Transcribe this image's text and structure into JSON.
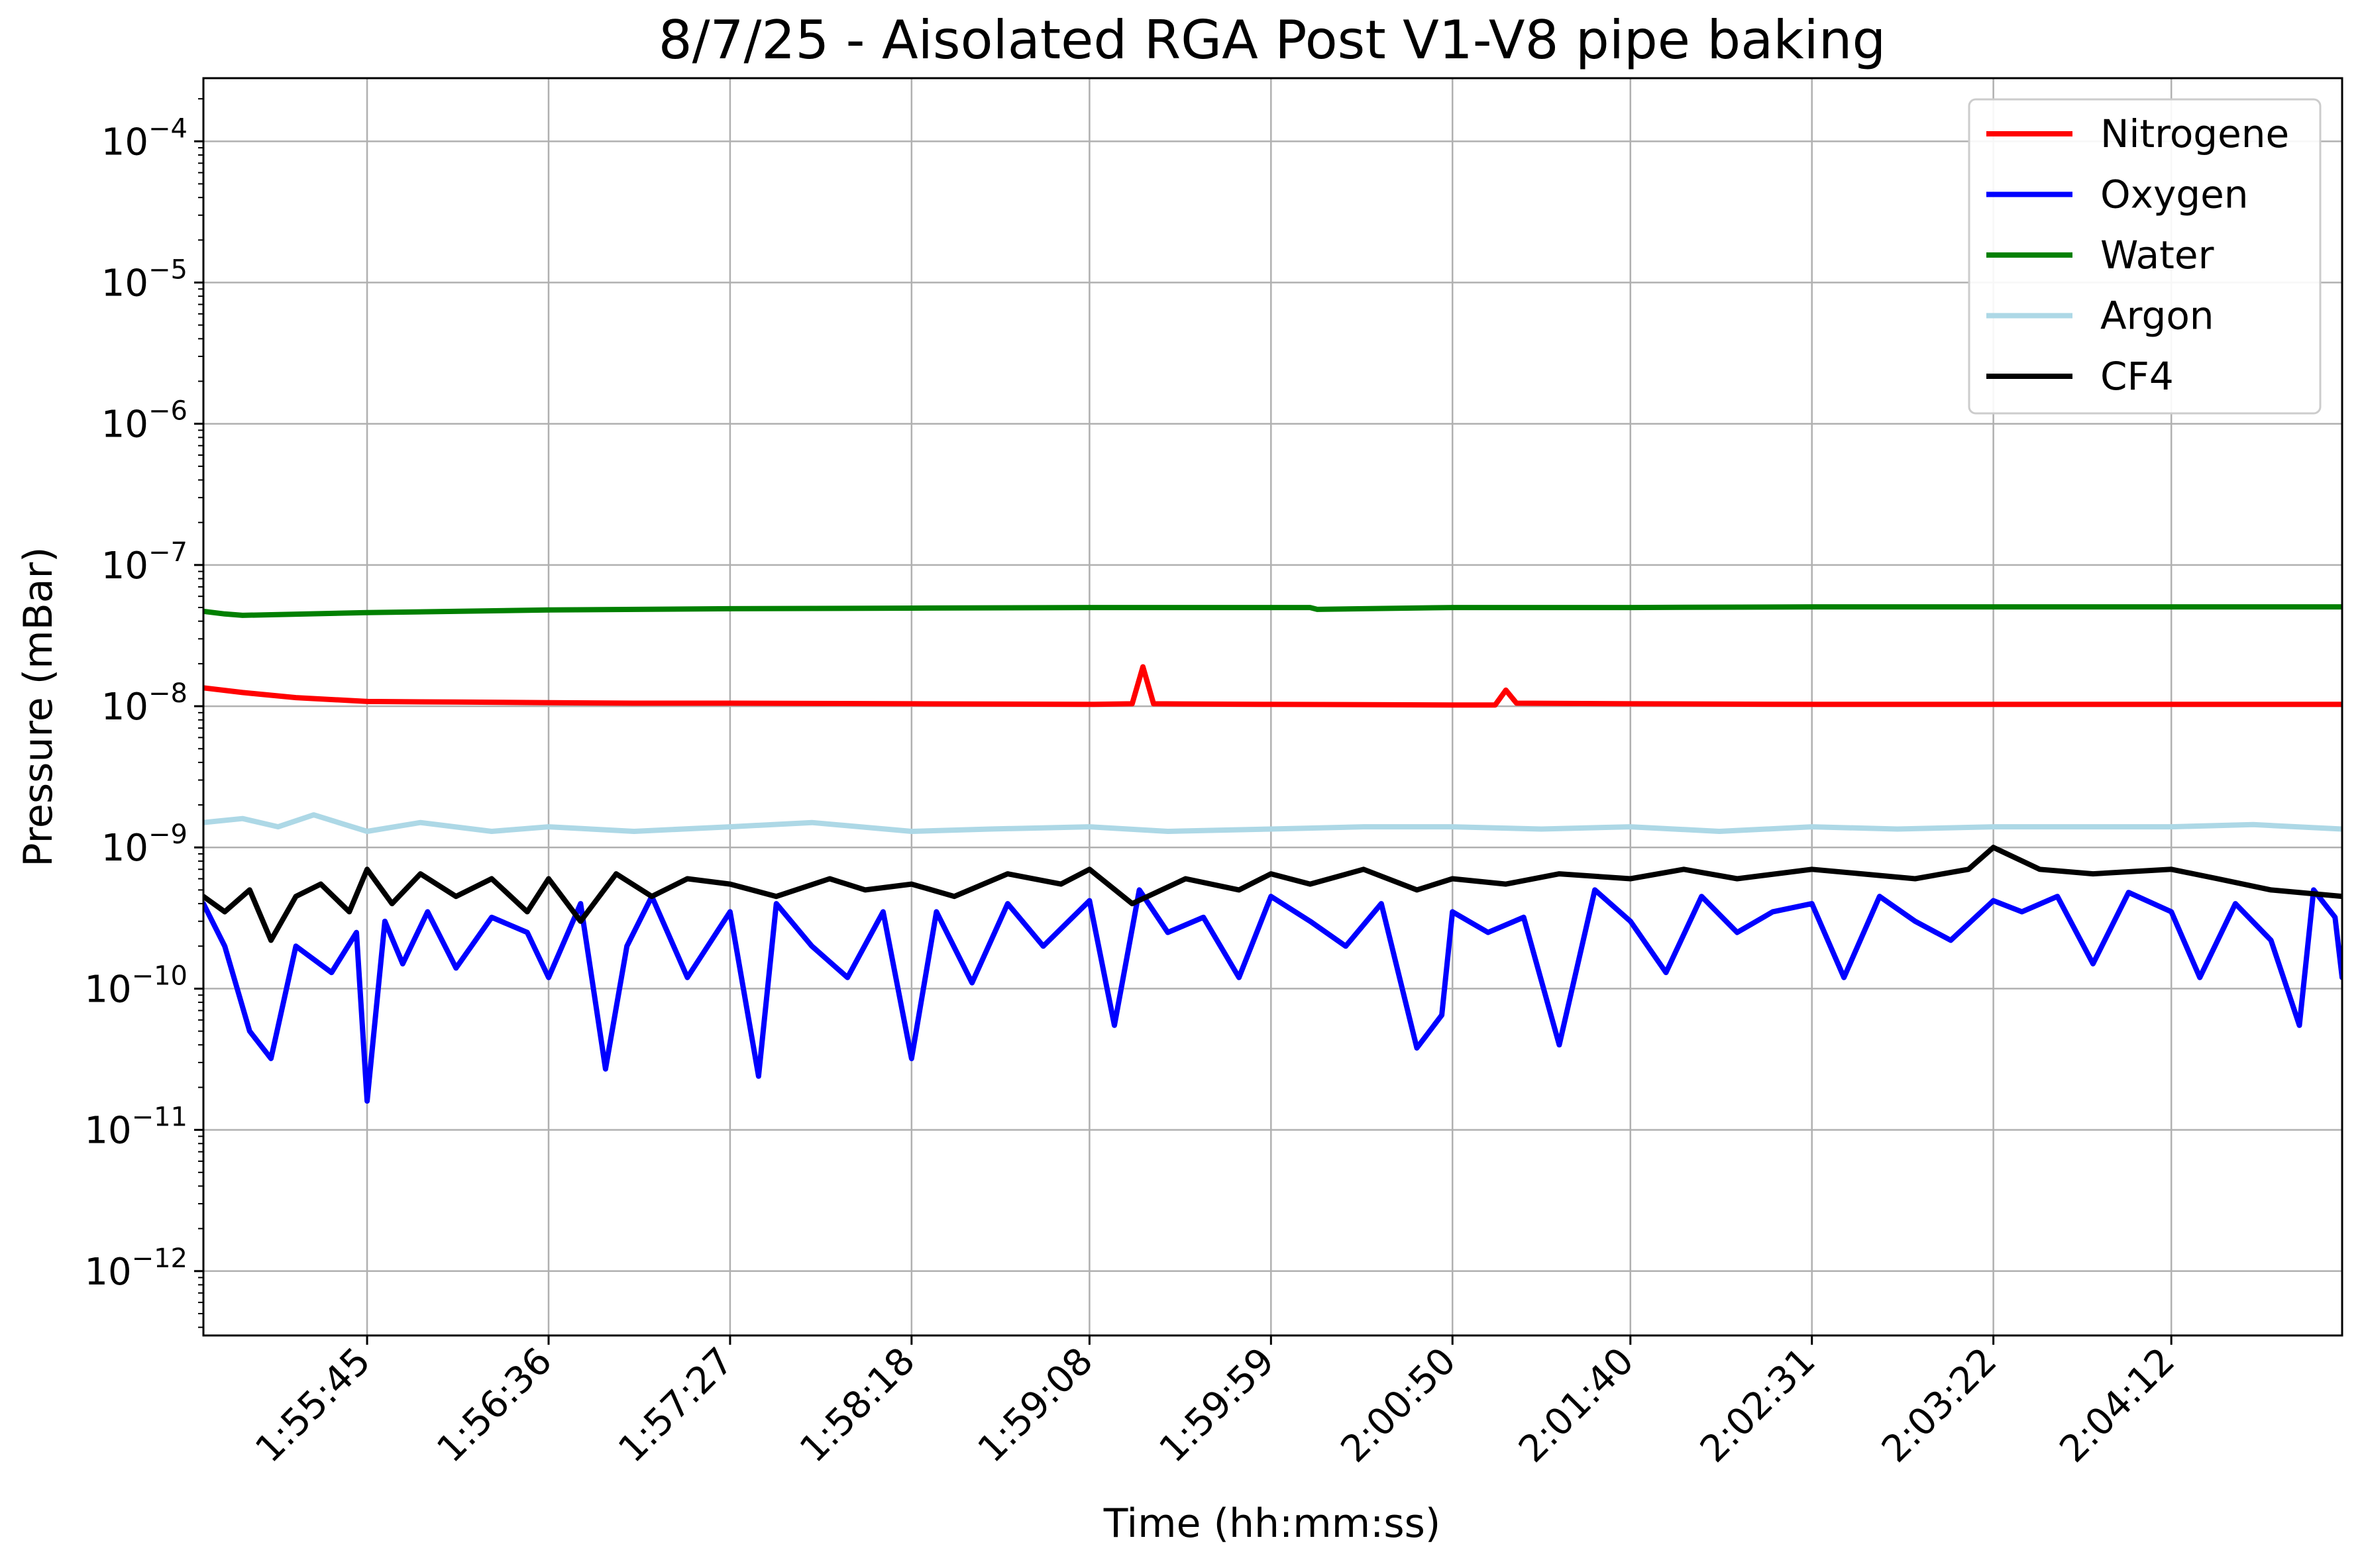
{
  "chart_data": {
    "type": "line",
    "title": "8/7/25 - Aisolated RGA Post V1-V8 pipe baking",
    "xlabel": "Time (hh:mm:ss)",
    "ylabel": "Pressure (mBar)",
    "yscale": "log",
    "ylim": [
      3.5e-13,
      0.00028
    ],
    "xlim": [
      "1:54:59",
      "2:05:00"
    ],
    "x_ticks": [
      "1:55:45",
      "1:56:36",
      "1:57:27",
      "1:58:18",
      "1:59:08",
      "1:59:59",
      "2:00:50",
      "2:01:40",
      "2:02:31",
      "2:03:22",
      "2:04:12"
    ],
    "y_ticks": [
      {
        "value": 1e-12,
        "base": "10",
        "exp": "−12"
      },
      {
        "value": 1e-11,
        "base": "10",
        "exp": "−11"
      },
      {
        "value": 1e-10,
        "base": "10",
        "exp": "−10"
      },
      {
        "value": 1e-09,
        "base": "10",
        "exp": "−9"
      },
      {
        "value": 1e-08,
        "base": "10",
        "exp": "−8"
      },
      {
        "value": 1e-07,
        "base": "10",
        "exp": "−7"
      },
      {
        "value": 1e-06,
        "base": "10",
        "exp": "−6"
      },
      {
        "value": 1e-05,
        "base": "10",
        "exp": "−5"
      },
      {
        "value": 0.0001,
        "base": "10",
        "exp": "−4"
      }
    ],
    "grid": true,
    "legend_position": "top-right",
    "series": [
      {
        "name": "Nitrogene",
        "color": "#ff0000",
        "x": [
          "1:54:59",
          "1:55:10",
          "1:55:25",
          "1:55:45",
          "1:56:10",
          "1:56:36",
          "1:57:00",
          "1:57:27",
          "1:58:18",
          "1:59:08",
          "1:59:20",
          "1:59:23",
          "1:59:26",
          "1:59:59",
          "2:00:50",
          "2:01:02",
          "2:01:05",
          "2:01:08",
          "2:01:40",
          "2:02:31",
          "2:03:22",
          "2:04:12",
          "2:05:00"
        ],
        "y": [
          1.35e-08,
          1.25e-08,
          1.15e-08,
          1.08e-08,
          1.07e-08,
          1.06e-08,
          1.05e-08,
          1.05e-08,
          1.04e-08,
          1.03e-08,
          1.04e-08,
          1.9e-08,
          1.04e-08,
          1.03e-08,
          1.02e-08,
          1.02e-08,
          1.3e-08,
          1.05e-08,
          1.04e-08,
          1.03e-08,
          1.03e-08,
          1.03e-08,
          1.03e-08
        ]
      },
      {
        "name": "Oxygen",
        "color": "#0000ff",
        "x": [
          "1:54:59",
          "1:55:05",
          "1:55:12",
          "1:55:18",
          "1:55:25",
          "1:55:35",
          "1:55:42",
          "1:55:45",
          "1:55:50",
          "1:55:55",
          "1:56:02",
          "1:56:10",
          "1:56:20",
          "1:56:30",
          "1:56:36",
          "1:56:45",
          "1:56:52",
          "1:56:58",
          "1:57:05",
          "1:57:15",
          "1:57:27",
          "1:57:35",
          "1:57:40",
          "1:57:50",
          "1:58:00",
          "1:58:10",
          "1:58:18",
          "1:58:25",
          "1:58:35",
          "1:58:45",
          "1:58:55",
          "1:59:08",
          "1:59:15",
          "1:59:22",
          "1:59:30",
          "1:59:40",
          "1:59:50",
          "1:59:59",
          "2:00:10",
          "2:00:20",
          "2:00:30",
          "2:00:40",
          "2:00:47",
          "2:00:50",
          "2:01:00",
          "2:01:10",
          "2:01:20",
          "2:01:30",
          "2:01:40",
          "2:01:50",
          "2:02:00",
          "2:02:10",
          "2:02:20",
          "2:02:31",
          "2:02:40",
          "2:02:50",
          "2:03:00",
          "2:03:10",
          "2:03:22",
          "2:03:30",
          "2:03:40",
          "2:03:50",
          "2:04:00",
          "2:04:12",
          "2:04:20",
          "2:04:30",
          "2:04:40",
          "2:04:48",
          "2:04:52",
          "2:04:58",
          "2:05:00"
        ],
        "y": [
          4e-10,
          2e-10,
          5e-11,
          3.2e-11,
          2e-10,
          1.3e-10,
          2.5e-10,
          1.6e-11,
          3e-10,
          1.5e-10,
          3.5e-10,
          1.4e-10,
          3.2e-10,
          2.5e-10,
          1.2e-10,
          4e-10,
          2.7e-11,
          2e-10,
          4.5e-10,
          1.2e-10,
          3.5e-10,
          2.4e-11,
          4e-10,
          2e-10,
          1.2e-10,
          3.5e-10,
          3.2e-11,
          3.5e-10,
          1.1e-10,
          4e-10,
          2e-10,
          4.2e-10,
          5.5e-11,
          5e-10,
          2.5e-10,
          3.2e-10,
          1.2e-10,
          4.5e-10,
          3e-10,
          2e-10,
          4e-10,
          3.8e-11,
          6.5e-11,
          3.5e-10,
          2.5e-10,
          3.2e-10,
          4e-11,
          5e-10,
          3e-10,
          1.3e-10,
          4.5e-10,
          2.5e-10,
          3.5e-10,
          4e-10,
          1.2e-10,
          4.5e-10,
          3e-10,
          2.2e-10,
          4.2e-10,
          3.5e-10,
          4.5e-10,
          1.5e-10,
          4.8e-10,
          3.5e-10,
          1.2e-10,
          4e-10,
          2.2e-10,
          5.5e-11,
          5e-10,
          3.2e-10,
          1.2e-10
        ]
      },
      {
        "name": "Water",
        "color": "#008000",
        "x": [
          "1:54:59",
          "1:55:05",
          "1:55:10",
          "1:55:45",
          "1:56:36",
          "1:57:27",
          "1:58:18",
          "1:59:08",
          "1:59:59",
          "2:00:10",
          "2:00:12",
          "2:00:50",
          "2:01:40",
          "2:02:31",
          "2:03:22",
          "2:04:12",
          "2:05:00"
        ],
        "y": [
          4.7e-08,
          4.5e-08,
          4.4e-08,
          4.6e-08,
          4.8e-08,
          4.9e-08,
          4.95e-08,
          5e-08,
          5e-08,
          5e-08,
          4.85e-08,
          5e-08,
          5e-08,
          5.05e-08,
          5.05e-08,
          5.05e-08,
          5.05e-08
        ]
      },
      {
        "name": "Argon",
        "color": "#add8e6",
        "x": [
          "1:54:59",
          "1:55:10",
          "1:55:20",
          "1:55:30",
          "1:55:45",
          "1:56:00",
          "1:56:20",
          "1:56:36",
          "1:57:00",
          "1:57:27",
          "1:57:50",
          "1:58:18",
          "1:58:40",
          "1:59:08",
          "1:59:30",
          "1:59:59",
          "2:00:25",
          "2:00:50",
          "2:01:15",
          "2:01:40",
          "2:02:05",
          "2:02:31",
          "2:02:55",
          "2:03:22",
          "2:03:45",
          "2:04:12",
          "2:04:35",
          "2:05:00"
        ],
        "y": [
          1.5e-09,
          1.6e-09,
          1.4e-09,
          1.7e-09,
          1.3e-09,
          1.5e-09,
          1.3e-09,
          1.4e-09,
          1.3e-09,
          1.4e-09,
          1.5e-09,
          1.3e-09,
          1.35e-09,
          1.4e-09,
          1.3e-09,
          1.35e-09,
          1.4e-09,
          1.4e-09,
          1.35e-09,
          1.4e-09,
          1.3e-09,
          1.4e-09,
          1.35e-09,
          1.4e-09,
          1.4e-09,
          1.4e-09,
          1.45e-09,
          1.35e-09
        ]
      },
      {
        "name": "CF4",
        "color": "#000000",
        "x": [
          "1:54:59",
          "1:55:05",
          "1:55:12",
          "1:55:18",
          "1:55:25",
          "1:55:32",
          "1:55:40",
          "1:55:45",
          "1:55:52",
          "1:56:00",
          "1:56:10",
          "1:56:20",
          "1:56:30",
          "1:56:36",
          "1:56:45",
          "1:56:55",
          "1:57:05",
          "1:57:15",
          "1:57:27",
          "1:57:40",
          "1:57:55",
          "1:58:05",
          "1:58:18",
          "1:58:30",
          "1:58:45",
          "1:59:00",
          "1:59:08",
          "1:59:20",
          "1:59:35",
          "1:59:50",
          "1:59:59",
          "2:00:10",
          "2:00:25",
          "2:00:40",
          "2:00:50",
          "2:01:05",
          "2:01:20",
          "2:01:40",
          "2:01:55",
          "2:02:10",
          "2:02:31",
          "2:02:45",
          "2:03:00",
          "2:03:15",
          "2:03:22",
          "2:03:35",
          "2:03:50",
          "2:04:12",
          "2:04:25",
          "2:04:40",
          "2:05:00"
        ],
        "y": [
          4.5e-10,
          3.5e-10,
          5e-10,
          2.2e-10,
          4.5e-10,
          5.5e-10,
          3.5e-10,
          7e-10,
          4e-10,
          6.5e-10,
          4.5e-10,
          6e-10,
          3.5e-10,
          6e-10,
          3e-10,
          6.5e-10,
          4.5e-10,
          6e-10,
          5.5e-10,
          4.5e-10,
          6e-10,
          5e-10,
          5.5e-10,
          4.5e-10,
          6.5e-10,
          5.5e-10,
          7e-10,
          4e-10,
          6e-10,
          5e-10,
          6.5e-10,
          5.5e-10,
          7e-10,
          5e-10,
          6e-10,
          5.5e-10,
          6.5e-10,
          6e-10,
          7e-10,
          6e-10,
          7e-10,
          6.5e-10,
          6e-10,
          7e-10,
          1e-09,
          7e-10,
          6.5e-10,
          7e-10,
          6e-10,
          5e-10,
          4.5e-10
        ]
      }
    ]
  }
}
